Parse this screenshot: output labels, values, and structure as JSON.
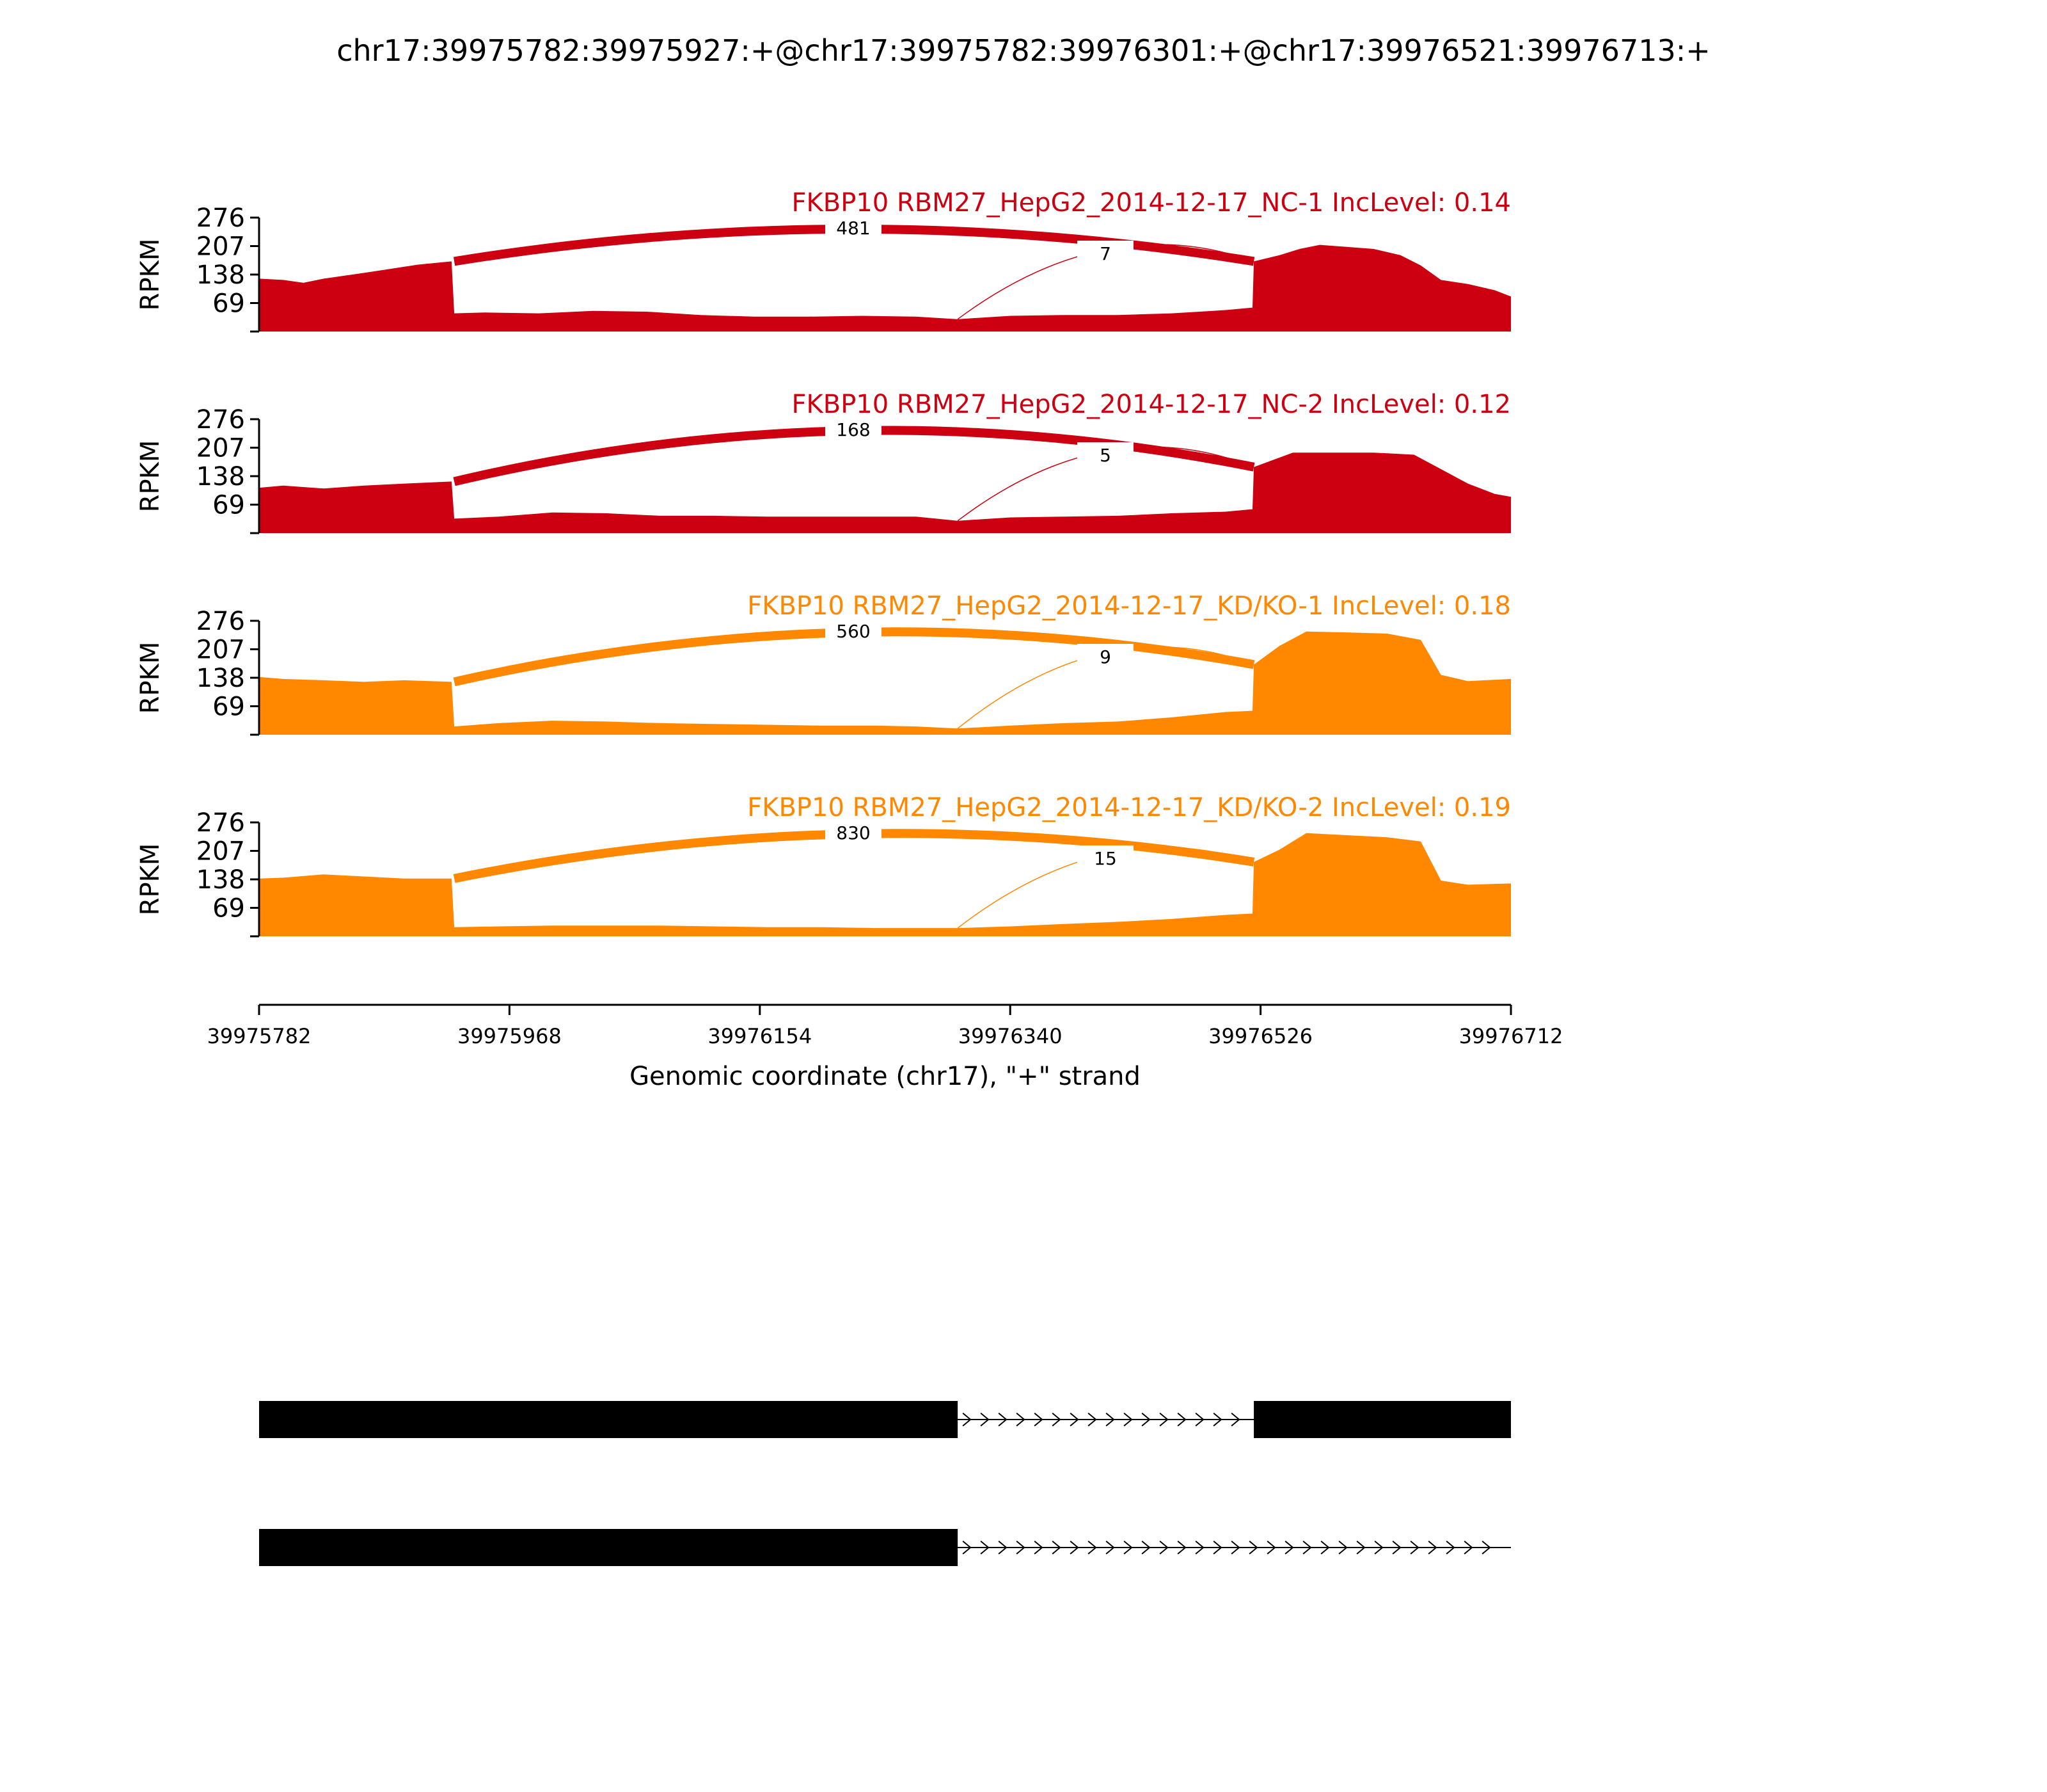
{
  "figure": {
    "title": "chr17:39975782:39975927:+@chr17:39975782:39976301:+@chr17:39976521:39976713:+"
  },
  "chart_data": {
    "type": "area",
    "title": "chr17:39975782:39975927:+@chr17:39975782:39976301:+@chr17:39976521:39976713:+",
    "xlabel": "Genomic coordinate (chr17), \"+\" strand",
    "ylabel": "RPKM",
    "xlim": [
      39975782,
      39976712
    ],
    "x_ticks": [
      39975782,
      39975968,
      39976154,
      39976340,
      39976526,
      39976712
    ],
    "ylim": [
      0,
      276
    ],
    "y_ticks": [
      69,
      138,
      207,
      276
    ],
    "series": [
      {
        "name": "FKBP10 RBM27_HepG2_2014-12-17_NC-1 IncLevel: 0.14",
        "color": "#CC0011",
        "x": [
          39975782,
          39975800,
          39975815,
          39975830,
          39975845,
          39975860,
          39975880,
          39975900,
          39975925,
          39975927,
          39975950,
          39975990,
          39976030,
          39976070,
          39976110,
          39976150,
          39976190,
          39976230,
          39976270,
          39976301,
          39976340,
          39976380,
          39976420,
          39976460,
          39976500,
          39976520,
          39976521,
          39976540,
          39976555,
          39976570,
          39976590,
          39976610,
          39976630,
          39976645,
          39976660,
          39976680,
          39976700,
          39976712
        ],
        "y": [
          128,
          125,
          118,
          128,
          135,
          142,
          152,
          162,
          170,
          44,
          46,
          44,
          50,
          48,
          40,
          36,
          36,
          38,
          36,
          30,
          38,
          40,
          40,
          44,
          52,
          58,
          170,
          185,
          200,
          210,
          205,
          200,
          185,
          160,
          125,
          115,
          100,
          85
        ]
      },
      {
        "name": "FKBP10 RBM27_HepG2_2014-12-17_NC-2 IncLevel: 0.12",
        "color": "#CC0011",
        "x": [
          39975782,
          39975800,
          39975830,
          39975860,
          39975890,
          39975925,
          39975927,
          39975960,
          39976000,
          39976040,
          39976080,
          39976120,
          39976160,
          39976200,
          39976240,
          39976270,
          39976301,
          39976340,
          39976380,
          39976420,
          39976460,
          39976500,
          39976520,
          39976521,
          39976550,
          39976580,
          39976610,
          39976640,
          39976660,
          39976680,
          39976700,
          39976712
        ],
        "y": [
          110,
          115,
          108,
          115,
          120,
          125,
          35,
          40,
          50,
          48,
          42,
          42,
          40,
          40,
          40,
          40,
          30,
          38,
          40,
          42,
          48,
          52,
          58,
          160,
          195,
          195,
          195,
          190,
          155,
          120,
          95,
          88
        ]
      },
      {
        "name": "FKBP10 RBM27_HepG2_2014-12-17_KD/KO-1 IncLevel: 0.18",
        "color": "#FF8800",
        "x": [
          39975782,
          39975800,
          39975830,
          39975860,
          39975890,
          39975925,
          39975927,
          39975960,
          39976000,
          39976040,
          39976080,
          39976120,
          39976160,
          39976200,
          39976240,
          39976270,
          39976301,
          39976340,
          39976380,
          39976420,
          39976460,
          39976500,
          39976520,
          39976521,
          39976540,
          39976560,
          39976590,
          39976620,
          39976645,
          39976660,
          39976680,
          39976712
        ],
        "y": [
          140,
          135,
          132,
          128,
          132,
          128,
          20,
          28,
          34,
          32,
          28,
          26,
          24,
          22,
          22,
          20,
          15,
          22,
          28,
          32,
          42,
          55,
          58,
          170,
          215,
          250,
          248,
          245,
          230,
          145,
          130,
          135
        ]
      },
      {
        "name": "FKBP10 RBM27_HepG2_2014-12-17_KD/KO-2 IncLevel: 0.19",
        "color": "#FF8800",
        "x": [
          39975782,
          39975800,
          39975830,
          39975860,
          39975890,
          39975925,
          39975927,
          39975960,
          39976000,
          39976040,
          39976080,
          39976120,
          39976160,
          39976200,
          39976240,
          39976270,
          39976301,
          39976340,
          39976380,
          39976420,
          39976460,
          39976500,
          39976520,
          39976521,
          39976540,
          39976560,
          39976590,
          39976620,
          39976645,
          39976660,
          39976680,
          39976712
        ],
        "y": [
          140,
          142,
          150,
          145,
          140,
          140,
          22,
          24,
          26,
          26,
          26,
          24,
          22,
          22,
          20,
          20,
          20,
          24,
          30,
          35,
          42,
          52,
          55,
          180,
          210,
          250,
          245,
          240,
          230,
          135,
          125,
          128
        ]
      }
    ],
    "junctions": [
      [
        {
          "start": 39975927,
          "end": 39976521,
          "reads": 481
        },
        {
          "start": 39976301,
          "end": 39976521,
          "reads": 7
        }
      ],
      [
        {
          "start": 39975927,
          "end": 39976521,
          "reads": 168
        },
        {
          "start": 39976301,
          "end": 39976521,
          "reads": 5
        }
      ],
      [
        {
          "start": 39975927,
          "end": 39976521,
          "reads": 560
        },
        {
          "start": 39976301,
          "end": 39976521,
          "reads": 9
        }
      ],
      [
        {
          "start": 39975927,
          "end": 39976521,
          "reads": 830
        },
        {
          "start": 39976301,
          "end": 39976521,
          "reads": 15
        }
      ]
    ],
    "isoforms": [
      {
        "exons": [
          [
            39975782,
            39976301
          ],
          [
            39976521,
            39976713
          ]
        ],
        "strand": "+"
      },
      {
        "exons": [
          [
            39975782,
            39976301
          ]
        ],
        "strand": "+"
      }
    ]
  }
}
